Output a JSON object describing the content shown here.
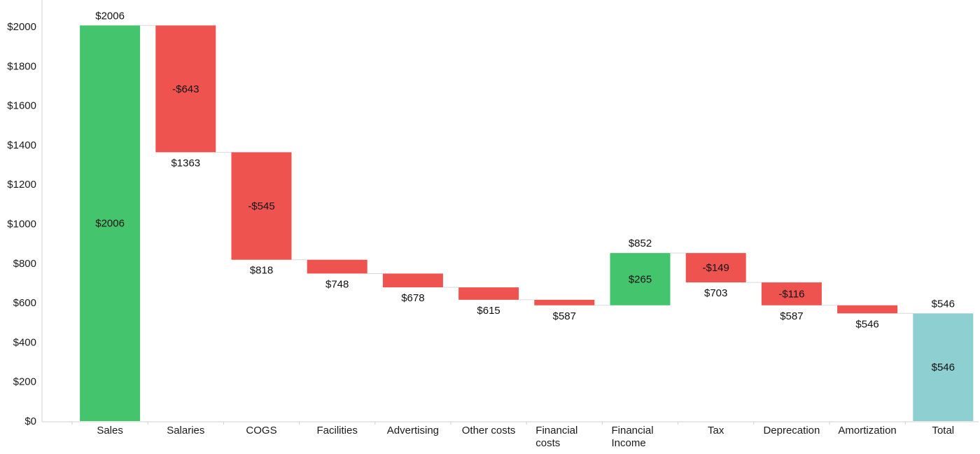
{
  "chart_data": {
    "type": "bar",
    "subtype": "waterfall",
    "title": "",
    "xlabel": "",
    "ylabel": "",
    "ylim": [
      0,
      2000
    ],
    "yticks": [
      "$0",
      "$200",
      "$400",
      "$600",
      "$800",
      "$1000",
      "$1200",
      "$1400",
      "$1600",
      "$1800",
      "$2000"
    ],
    "grid": false,
    "legend": "none",
    "colors": {
      "increase": "#45c46e",
      "decrease": "#ef5350",
      "total": "#8ecfd2",
      "connector": "#d9d9d9",
      "axis": "#d0d0d0"
    },
    "steps": [
      {
        "category": [
          "Sales"
        ],
        "kind": "increase",
        "start": 0,
        "end": 2006,
        "value_label": "$2006",
        "total_label": "$2006"
      },
      {
        "category": [
          "Salaries"
        ],
        "kind": "decrease",
        "start": 2006,
        "end": 1363,
        "value_label": "-$643",
        "total_label": "$1363"
      },
      {
        "category": [
          "COGS"
        ],
        "kind": "decrease",
        "start": 1363,
        "end": 818,
        "value_label": "-$545",
        "total_label": "$818"
      },
      {
        "category": [
          "Facilities"
        ],
        "kind": "decrease",
        "start": 818,
        "end": 748,
        "value_label": "",
        "total_label": "$748"
      },
      {
        "category": [
          "Advertising"
        ],
        "kind": "decrease",
        "start": 748,
        "end": 678,
        "value_label": "",
        "total_label": "$678"
      },
      {
        "category": [
          "Other costs"
        ],
        "kind": "decrease",
        "start": 678,
        "end": 615,
        "value_label": "",
        "total_label": "$615"
      },
      {
        "category": [
          "Financial",
          "costs"
        ],
        "kind": "decrease",
        "start": 615,
        "end": 587,
        "value_label": "",
        "total_label": "$587"
      },
      {
        "category": [
          "Financial",
          "Income"
        ],
        "kind": "increase",
        "start": 587,
        "end": 852,
        "value_label": "$265",
        "total_label": "$852"
      },
      {
        "category": [
          "Tax"
        ],
        "kind": "decrease",
        "start": 852,
        "end": 703,
        "value_label": "-$149",
        "total_label": "$703"
      },
      {
        "category": [
          "Deprecation"
        ],
        "kind": "decrease",
        "start": 703,
        "end": 587,
        "value_label": "-$116",
        "total_label": "$587"
      },
      {
        "category": [
          "Amortization"
        ],
        "kind": "decrease",
        "start": 587,
        "end": 546,
        "value_label": "",
        "total_label": "$546"
      },
      {
        "category": [
          "Total"
        ],
        "kind": "total",
        "start": 0,
        "end": 546,
        "value_label": "$546",
        "total_label": "$546"
      }
    ]
  }
}
